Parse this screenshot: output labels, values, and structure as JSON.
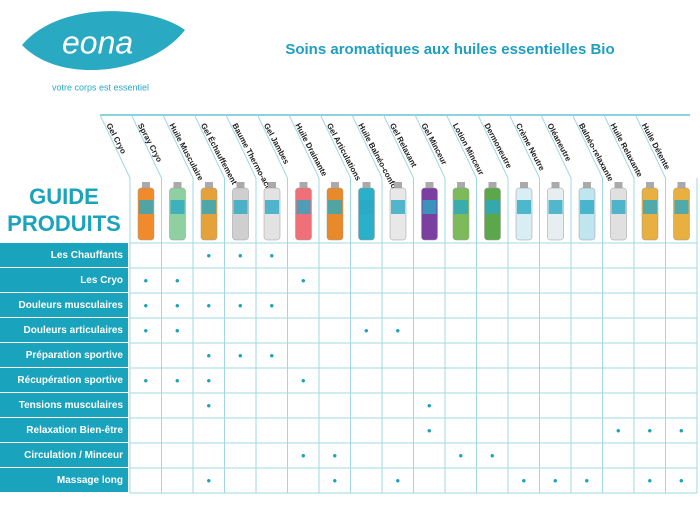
{
  "header": {
    "logo": "eona",
    "tagline": "votre corps est essentiel",
    "title": "Soins aromatiques aux huiles essentielles Bio"
  },
  "guide_title": [
    "GUIDE",
    "PRODUITS"
  ],
  "table": {
    "columns": [
      "Gel Cryo",
      "Spray Cryo",
      "Huile Musculaire",
      "Gel Échauffement",
      "Baume Thermo-actif",
      "Gel Jambes",
      "Huile Drainante",
      "Gel Articulations",
      "Huile Balnéo-confort",
      "Gel Relaxant",
      "Gel Minceur",
      "Lotion Minceur",
      "Dermoneutre",
      "Crème Neutre",
      "Oléaneutre",
      "Balnéo-relaxante",
      "Huile Relaxante",
      "Huile Détente"
    ],
    "rows": [
      {
        "label": "Les Chauffants",
        "cells": [
          null,
          null,
          "•",
          "•",
          "•",
          null,
          null,
          null,
          null,
          null,
          null,
          null,
          null,
          null,
          null,
          null,
          null,
          null
        ]
      },
      {
        "label": "Les Cryo",
        "cells": [
          "•",
          "•",
          null,
          null,
          null,
          "•",
          null,
          null,
          null,
          null,
          null,
          null,
          null,
          null,
          null,
          null,
          null,
          null
        ]
      },
      {
        "label": "Douleurs musculaires",
        "cells": [
          "•",
          "•",
          "•",
          "•",
          "•",
          null,
          null,
          null,
          null,
          null,
          null,
          null,
          null,
          null,
          null,
          null,
          null,
          null
        ]
      },
      {
        "label": "Douleurs articulaires",
        "cells": [
          "•",
          "•",
          null,
          null,
          null,
          null,
          null,
          "•",
          "•",
          null,
          null,
          null,
          null,
          null,
          null,
          null,
          null,
          null
        ]
      },
      {
        "label": "Préparation sportive",
        "cells": [
          null,
          null,
          "•",
          "•",
          "•",
          null,
          null,
          null,
          null,
          null,
          null,
          null,
          null,
          null,
          null,
          null,
          null,
          null
        ]
      },
      {
        "label": "Récupération sportive",
        "cells": [
          "•",
          "•",
          "•",
          null,
          null,
          "•",
          null,
          null,
          null,
          null,
          null,
          null,
          null,
          null,
          null,
          null,
          null,
          null
        ]
      },
      {
        "label": "Tensions musculaires",
        "cells": [
          null,
          null,
          "•",
          null,
          null,
          null,
          null,
          null,
          null,
          "•",
          null,
          null,
          null,
          null,
          null,
          null,
          null,
          null
        ]
      },
      {
        "label": "Relaxation Bien-être",
        "cells": [
          null,
          null,
          null,
          null,
          null,
          null,
          null,
          null,
          null,
          "•",
          null,
          null,
          null,
          null,
          null,
          "•",
          "•",
          "•"
        ]
      },
      {
        "label": "Circulation / Minceur",
        "cells": [
          null,
          null,
          null,
          null,
          null,
          "•",
          "•",
          null,
          null,
          null,
          "•",
          "•",
          null,
          null,
          null,
          null,
          null,
          null
        ]
      },
      {
        "label": "Massage long",
        "cells": [
          null,
          null,
          "•",
          null,
          null,
          null,
          "•",
          null,
          "•",
          null,
          null,
          null,
          "•",
          "•",
          "•",
          null,
          "•",
          "•"
        ]
      }
    ]
  }
}
